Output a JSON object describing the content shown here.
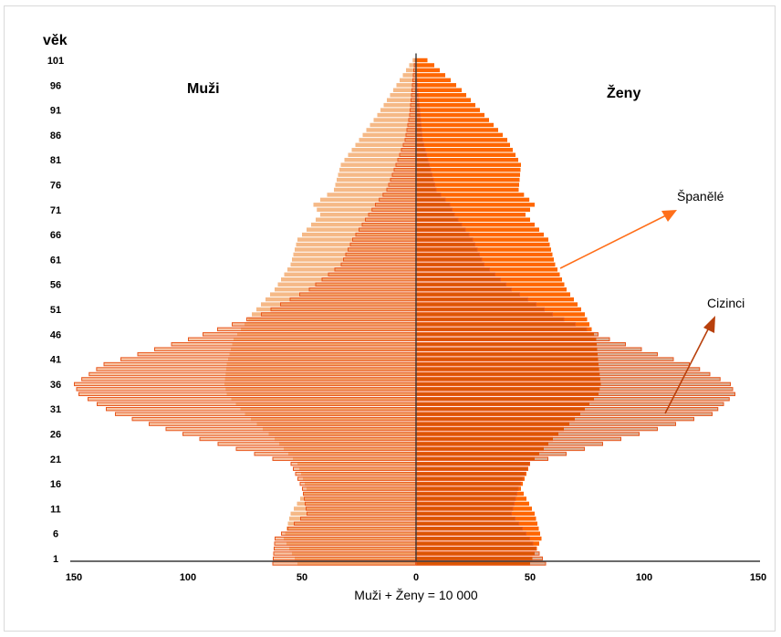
{
  "colors": {
    "spaniards_men": "#F5B987",
    "spaniards_women": "#FF6600",
    "foreigners_men": "#F08C4A",
    "foreigners_women": "#A84000",
    "bar_outline": "#E8561C",
    "axis": "#3a3a3a",
    "arrow_spaniards": "#FF6F1A",
    "arrow_foreigners": "#B8400C"
  },
  "chart_data": {
    "type": "population-pyramid",
    "y_axis_title": "věk",
    "left_label": "Muži",
    "right_label": "Ženy",
    "footer": "Muži + Ženy = 10 000",
    "x_ticks": [
      "150",
      "100",
      "50",
      "0",
      "50",
      "100",
      "150"
    ],
    "x_tick_values": [
      -150,
      -100,
      -50,
      0,
      50,
      100,
      150
    ],
    "xlim": [
      -150,
      150
    ],
    "y_ticks": [
      "101",
      "96",
      "91",
      "86",
      "81",
      "76",
      "71",
      "66",
      "61",
      "56",
      "51",
      "46",
      "41",
      "36",
      "31",
      "26",
      "21",
      "16",
      "11",
      "6",
      "1"
    ],
    "y_tick_values": [
      101,
      96,
      91,
      86,
      81,
      76,
      71,
      66,
      61,
      56,
      51,
      46,
      41,
      36,
      31,
      26,
      21,
      16,
      11,
      6,
      1
    ],
    "ylim": [
      0,
      102
    ],
    "annotations": [
      {
        "label": "Španělé",
        "series": "Španělé"
      },
      {
        "label": "Cizinci",
        "series": "Cizinci"
      }
    ],
    "age_knots": [
      0,
      5,
      10,
      15,
      20,
      25,
      30,
      34,
      36,
      40,
      45,
      50,
      55,
      60,
      65,
      70,
      72,
      75,
      80,
      85,
      90,
      95,
      100,
      102
    ],
    "series": [
      {
        "name": "Španělé",
        "men": [
          52,
          58,
          55,
          48,
          52,
          62,
          75,
          83,
          84,
          83,
          80,
          72,
          62,
          55,
          52,
          42,
          45,
          36,
          33,
          25,
          17,
          10,
          3,
          0
        ],
        "women": [
          50,
          55,
          52,
          46,
          50,
          60,
          72,
          80,
          81,
          80,
          79,
          74,
          66,
          61,
          58,
          48,
          52,
          45,
          46,
          40,
          30,
          20,
          8,
          2
        ]
      },
      {
        "name": "Cizinci",
        "men": [
          63,
          62,
          48,
          50,
          55,
          95,
          132,
          148,
          150,
          137,
          100,
          68,
          47,
          33,
          28,
          21,
          18,
          13,
          9,
          5,
          3,
          2,
          1,
          0
        ],
        "women": [
          57,
          50,
          42,
          45,
          50,
          90,
          130,
          140,
          138,
          120,
          85,
          60,
          42,
          30,
          25,
          17,
          15,
          9,
          6,
          3,
          2,
          1,
          0,
          0
        ]
      }
    ]
  }
}
